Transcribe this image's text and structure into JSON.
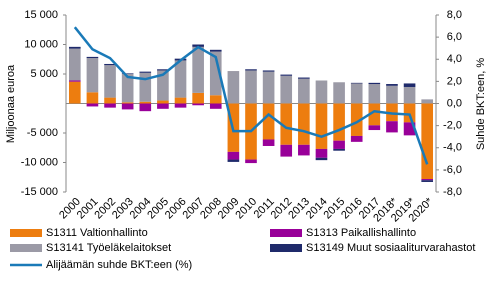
{
  "chart_data": {
    "type": "bar-line",
    "y_label": "Miljoonaa euroa",
    "y2_label": "Suhde BKT:een, %",
    "categories": [
      "2000",
      "2001",
      "2002",
      "2003",
      "2004",
      "2005",
      "2006",
      "2007",
      "2008",
      "2009",
      "2010",
      "2011",
      "2012",
      "2013",
      "2014",
      "2015",
      "2016",
      "2017",
      "2018*",
      "2019*",
      "2020*"
    ],
    "series": [
      {
        "name": "S1311 Valtionhallinto",
        "color": "#ed7d0f",
        "values": [
          3700,
          1900,
          1000,
          200,
          300,
          500,
          1000,
          1800,
          1400,
          -8200,
          -9500,
          -6100,
          -7000,
          -7000,
          -7700,
          -6300,
          -5500,
          -3700,
          -3000,
          -3200,
          -12800
        ]
      },
      {
        "name": "S1313 Paikallishallinto",
        "color": "#990099",
        "values": [
          200,
          -500,
          -700,
          -1000,
          -1300,
          -900,
          -700,
          -300,
          -900,
          -1300,
          -600,
          -1100,
          -2000,
          -1800,
          -1500,
          -1400,
          -1000,
          -800,
          -1900,
          -2200,
          -200
        ]
      },
      {
        "name": "S13141 Työeläkelaitokset",
        "color": "#9b9aa6",
        "values": [
          5400,
          5800,
          5500,
          4800,
          4900,
          5100,
          6300,
          7800,
          7400,
          5500,
          5600,
          5400,
          4700,
          4200,
          3900,
          3600,
          3400,
          3300,
          3000,
          2800,
          700
        ]
      },
      {
        "name": "S13149  Muut sosiaaliturvarahastot",
        "color": "#1f2a6b",
        "values": [
          300,
          200,
          200,
          100,
          200,
          200,
          300,
          400,
          300,
          -400,
          200,
          200,
          200,
          200,
          -400,
          -300,
          100,
          200,
          300,
          600,
          -300
        ]
      },
      {
        "name": "Alijäämän suhde BKT:een (%)",
        "color": "#1a7ab8",
        "axis": "y2",
        "values": [
          6.9,
          4.9,
          4.1,
          2.4,
          2.2,
          2.6,
          3.9,
          5.1,
          4.2,
          -2.5,
          -2.5,
          -1.0,
          -2.2,
          -2.5,
          -3.0,
          -2.4,
          -1.7,
          -0.7,
          -0.9,
          -1.0,
          -5.5
        ]
      }
    ],
    "ylim": [
      -15000,
      15000
    ],
    "yticks": [
      {
        "value": 15000,
        "label": "15 000"
      },
      {
        "value": 10000,
        "label": "10 000"
      },
      {
        "value": 5000,
        "label": "5 000"
      },
      {
        "value": -5000,
        "label": "-5 000"
      },
      {
        "value": -10000,
        "label": "-10 000"
      },
      {
        "value": -15000,
        "label": "-15 000"
      }
    ],
    "y2lim": [
      -8,
      8
    ],
    "y2ticks": [
      {
        "value": 8,
        "label": "8,0"
      },
      {
        "value": 6,
        "label": "6,0"
      },
      {
        "value": 4,
        "label": "4,0"
      },
      {
        "value": 2,
        "label": "2,0"
      },
      {
        "value": 0,
        "label": "0,0"
      },
      {
        "value": -2,
        "label": "-2,0"
      },
      {
        "value": -4,
        "label": "-4,0"
      },
      {
        "value": -6,
        "label": "-6,0"
      },
      {
        "value": -8,
        "label": "-8,0"
      }
    ]
  }
}
